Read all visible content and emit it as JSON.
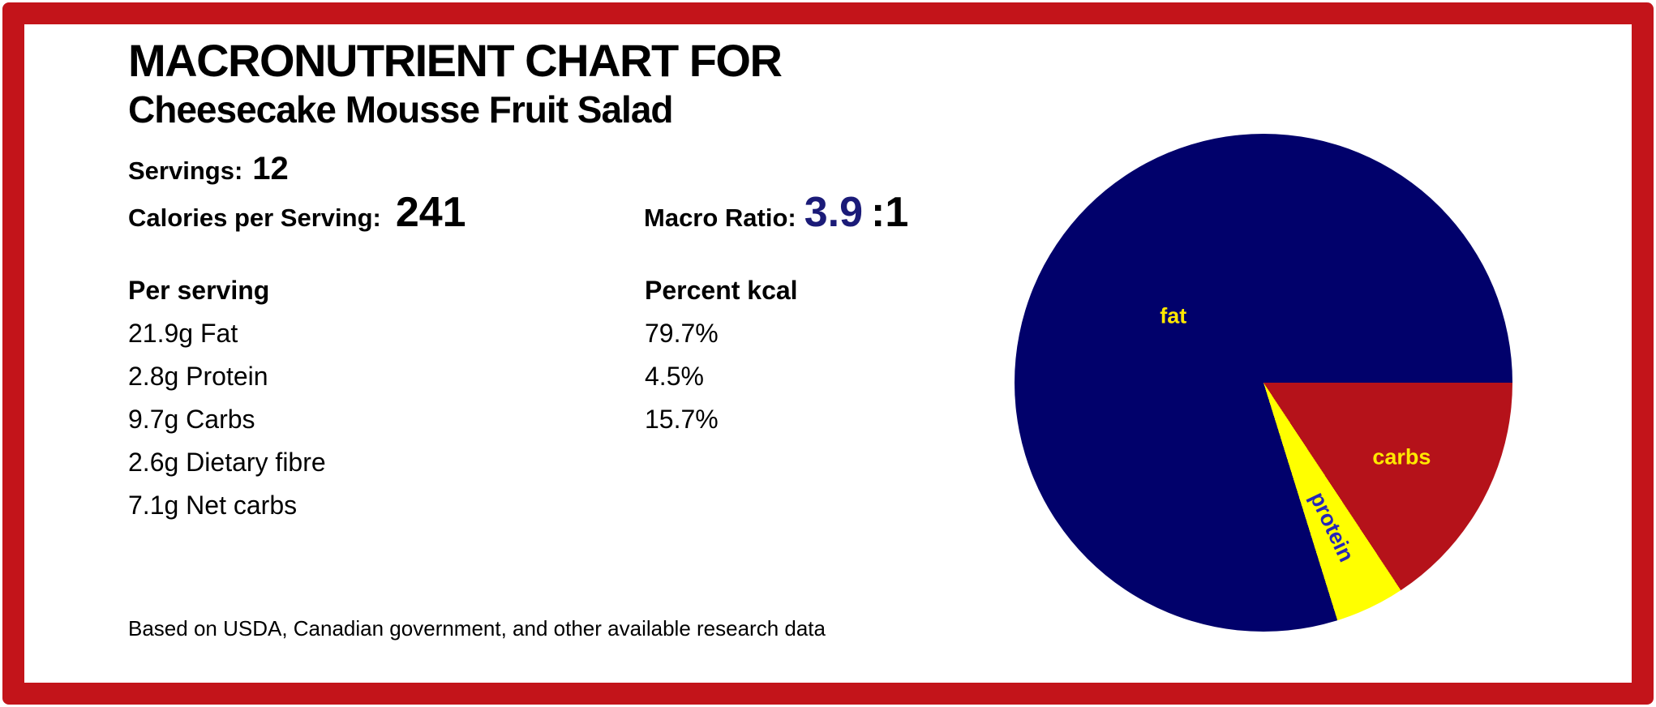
{
  "header": {
    "title": "MACRONUTRIENT CHART FOR",
    "subtitle": "Cheesecake Mousse Fruit Salad",
    "servings_label": "Servings:",
    "servings_value": "12",
    "calories_label": "Calories per Serving:",
    "calories_value": "241",
    "macro_ratio_label": "Macro Ratio:",
    "macro_ratio_value": "3.9",
    "macro_ratio_suffix": ":1"
  },
  "table": {
    "col1_header": "Per serving",
    "col2_header": "Percent kcal",
    "rows": [
      {
        "amount": "21.9g Fat",
        "percent": "79.7%"
      },
      {
        "amount": "2.8g Protein",
        "percent": "4.5%"
      },
      {
        "amount": "9.7g Carbs",
        "percent": "15.7%"
      },
      {
        "amount": "2.6g Dietary fibre",
        "percent": ""
      },
      {
        "amount": "7.1g Net carbs",
        "percent": ""
      }
    ]
  },
  "footnote": "Based on USDA, Canadian government, and other available research data",
  "colors": {
    "frame_border": "#c3141a",
    "ratio_accent": "#1b1b78"
  },
  "chart_data": {
    "type": "pie",
    "title": "",
    "start_position": "3-oclock",
    "direction": "clockwise",
    "legend_position": "labels inside slices",
    "slices": [
      {
        "label": "carbs",
        "percent": 15.7,
        "color": "#b5121a",
        "label_color": "#ffe800"
      },
      {
        "label": "protein",
        "percent": 4.5,
        "color": "#ffff00",
        "label_color": "#2626b8"
      },
      {
        "label": "fat",
        "percent": 79.7,
        "color": "#01016b",
        "label_color": "#ffe800"
      }
    ]
  }
}
